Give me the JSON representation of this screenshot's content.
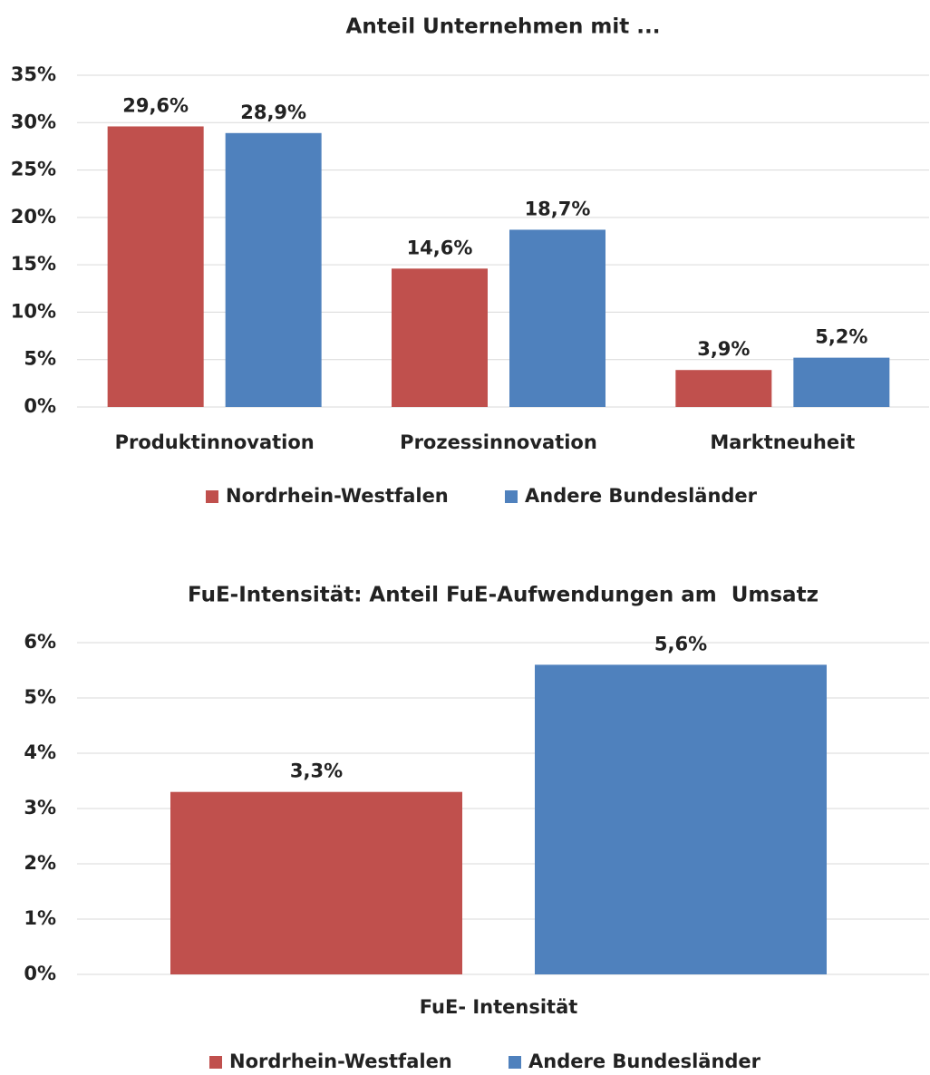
{
  "chart_data": [
    {
      "type": "bar",
      "title": "Anteil Unternehmen mit ...",
      "categories": [
        "Produktinnovation",
        "Prozessinnovation",
        "Marktneuheit"
      ],
      "series": [
        {
          "name": "Nordrhein-Westfalen",
          "color": "#c0504d",
          "values": [
            29.6,
            14.6,
            3.9
          ],
          "value_labels": [
            "29,6%",
            "14,6%",
            "3,9%"
          ]
        },
        {
          "name": "Andere Bundesländer",
          "color": "#4f81bd",
          "values": [
            28.9,
            18.7,
            5.2
          ],
          "value_labels": [
            "28,9%",
            "18,7%",
            "5,2%"
          ]
        }
      ],
      "ylim": [
        0,
        35
      ],
      "yticks": [
        {
          "value": 0,
          "label": "0%"
        },
        {
          "value": 5,
          "label": "5%"
        },
        {
          "value": 10,
          "label": "10%"
        },
        {
          "value": 15,
          "label": "15%"
        },
        {
          "value": 20,
          "label": "20%"
        },
        {
          "value": 25,
          "label": "25%"
        },
        {
          "value": 30,
          "label": "30%"
        },
        {
          "value": 35,
          "label": "35%"
        }
      ],
      "grid": true,
      "legend": "bottom"
    },
    {
      "type": "bar",
      "title": "FuE-Intensität: Anteil FuE-Aufwendungen am  Umsatz",
      "categories": [
        "FuE- Intensität"
      ],
      "series": [
        {
          "name": "Nordrhein-Westfalen",
          "color": "#c0504d",
          "values": [
            3.3
          ],
          "value_labels": [
            "3,3%"
          ]
        },
        {
          "name": "Andere Bundesländer",
          "color": "#4f81bd",
          "values": [
            5.6
          ],
          "value_labels": [
            "5,6%"
          ]
        }
      ],
      "ylim": [
        0,
        6
      ],
      "yticks": [
        {
          "value": 0,
          "label": "0%"
        },
        {
          "value": 1,
          "label": "1%"
        },
        {
          "value": 2,
          "label": "2%"
        },
        {
          "value": 3,
          "label": "3%"
        },
        {
          "value": 4,
          "label": "4%"
        },
        {
          "value": 5,
          "label": "5%"
        },
        {
          "value": 6,
          "label": "6%"
        }
      ],
      "grid": true,
      "legend": "bottom"
    }
  ]
}
